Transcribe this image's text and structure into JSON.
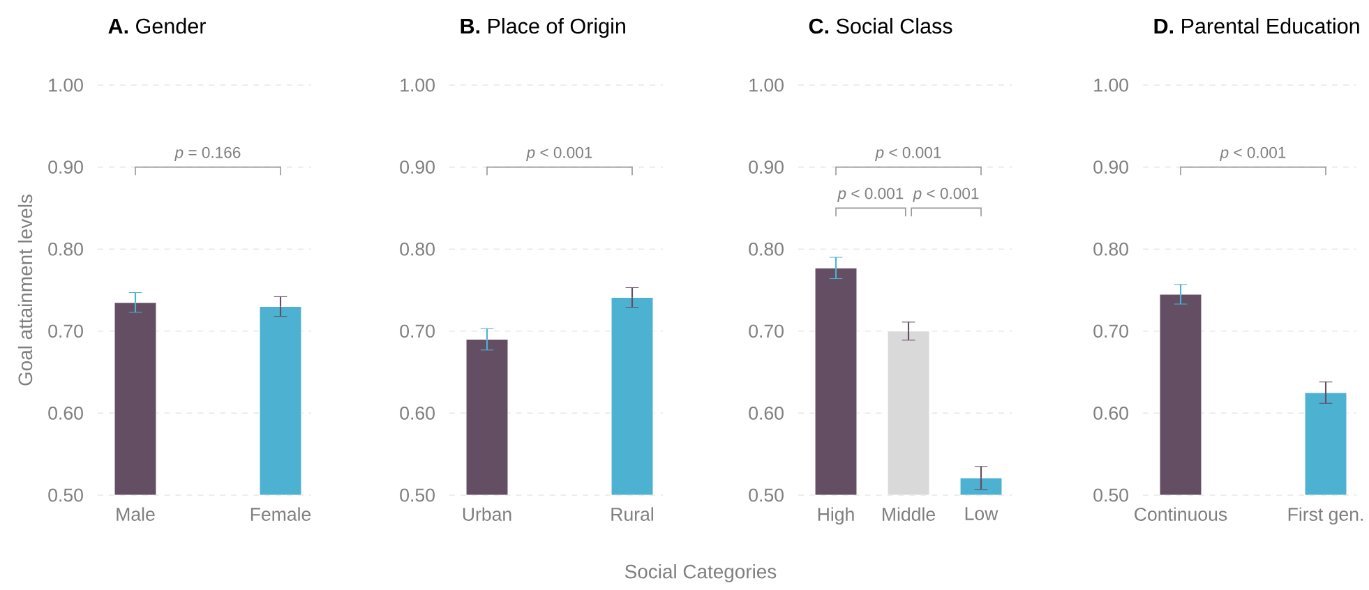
{
  "chart_data": [
    {
      "type": "bar",
      "title": "**A.** Gender",
      "ylabel": "Goal attainment levels",
      "categories": [
        "Male",
        "Female"
      ],
      "values": [
        0.735,
        0.73
      ],
      "errors": [
        0.012,
        0.012
      ],
      "colors": [
        "#634e63",
        "#4db1d1"
      ],
      "ylim": [
        0.5,
        1.0
      ],
      "yticks": [
        {
          "value": 0.5,
          "label": "0.50"
        },
        {
          "value": 0.6,
          "label": "0.60"
        },
        {
          "value": 0.7,
          "label": "0.70"
        },
        {
          "value": 0.8,
          "label": "0.80"
        },
        {
          "value": 0.9,
          "label": "0.90"
        },
        {
          "value": 1.0,
          "label": "1.00"
        }
      ],
      "grid": "y",
      "annotations": [
        "*p* = 0.166"
      ]
    },
    {
      "type": "bar",
      "title": "**B.** Place of Origin",
      "xlabel": "Social Categories",
      "categories": [
        "Urban",
        "Rural"
      ],
      "values": [
        0.69,
        0.741
      ],
      "errors": [
        0.013,
        0.012
      ],
      "colors": [
        "#634e63",
        "#4db1d1"
      ],
      "ylim": [
        0.5,
        1.0
      ],
      "yticks": [
        {
          "value": 0.5,
          "label": "0.50"
        },
        {
          "value": 0.6,
          "label": "0.60"
        },
        {
          "value": 0.7,
          "label": "0.70"
        },
        {
          "value": 0.8,
          "label": "0.80"
        },
        {
          "value": 0.9,
          "label": "0.90"
        },
        {
          "value": 1.0,
          "label": "1.00"
        }
      ],
      "grid": "y",
      "annotations": [
        "*p* < 0.001"
      ]
    },
    {
      "type": "bar",
      "title": "**C.** Social Class",
      "categories": [
        "High",
        "Middle",
        "Low"
      ],
      "values": [
        0.777,
        0.7,
        0.521
      ],
      "errors": [
        0.013,
        0.011,
        0.014
      ],
      "colors": [
        "#634e63",
        "#d9d9d9",
        "#4db1d1"
      ],
      "ylim": [
        0.5,
        1.0
      ],
      "yticks": [
        {
          "value": 0.5,
          "label": "0.50"
        },
        {
          "value": 0.6,
          "label": "0.60"
        },
        {
          "value": 0.7,
          "label": "0.70"
        },
        {
          "value": 0.8,
          "label": "0.80"
        },
        {
          "value": 0.9,
          "label": "0.90"
        },
        {
          "value": 1.0,
          "label": "1.00"
        }
      ],
      "grid": "y",
      "annotations": [
        "*p* < 0.001",
        "*p* < 0.001",
        "*p* < 0.001"
      ]
    },
    {
      "type": "bar",
      "title": "**D.** Parental Education",
      "categories": [
        "Continuous",
        "First gen."
      ],
      "values": [
        0.745,
        0.625
      ],
      "errors": [
        0.012,
        0.013
      ],
      "colors": [
        "#634e63",
        "#4db1d1"
      ],
      "ylim": [
        0.5,
        1.0
      ],
      "yticks": [
        {
          "value": 0.5,
          "label": "0.50"
        },
        {
          "value": 0.6,
          "label": "0.60"
        },
        {
          "value": 0.7,
          "label": "0.70"
        },
        {
          "value": 0.8,
          "label": "0.80"
        },
        {
          "value": 0.9,
          "label": "0.90"
        },
        {
          "value": 1.0,
          "label": "1.00"
        }
      ],
      "grid": "y",
      "annotations": [
        "*p* < 0.001"
      ]
    }
  ]
}
